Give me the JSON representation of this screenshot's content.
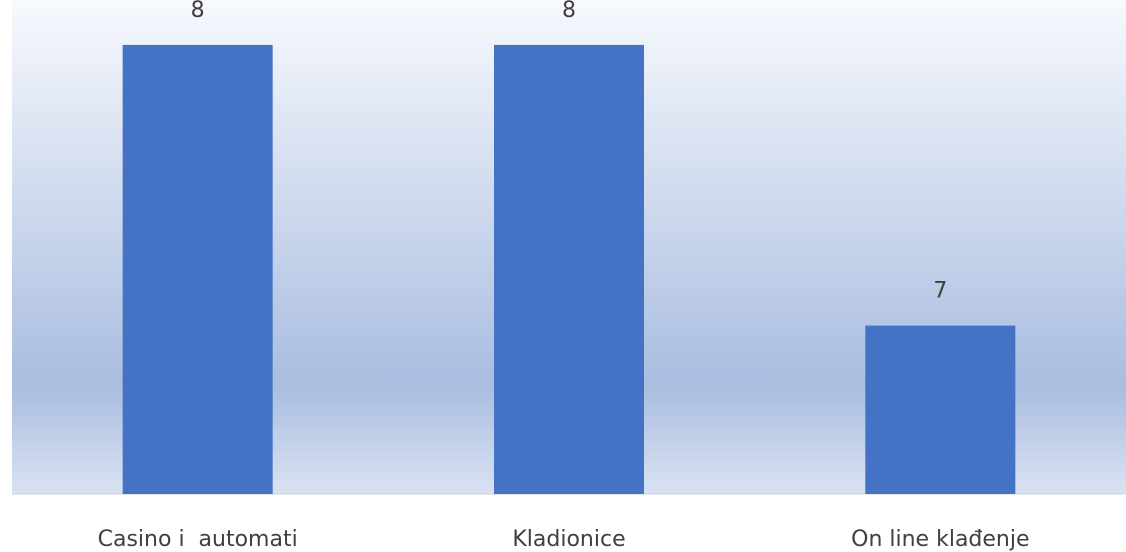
{
  "chart_data": {
    "type": "bar",
    "categories": [
      "Casino i  automati",
      "Kladionice",
      "On line klađenje"
    ],
    "values": [
      8,
      8,
      7
    ],
    "data_labels": [
      "8",
      "8",
      "7"
    ],
    "title": "",
    "xlabel": "",
    "ylabel": "",
    "ylim": [
      6.4,
      8.16
    ],
    "grid": false,
    "legend": "none",
    "colors": {
      "bar": "#4472c4",
      "background_top": "#f7f9fd",
      "background_bottom": "#a9bde0",
      "label_text": "#404040",
      "axis_line": "#c9cfd8"
    }
  }
}
